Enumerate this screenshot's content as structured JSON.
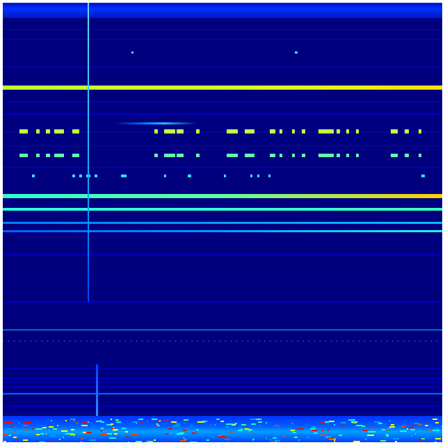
{
  "figure": {
    "type": "spectrogram",
    "colormap": "jet",
    "colors": {
      "background": "#00007f",
      "low": "#0000ff",
      "mid": "#00ffff",
      "high": "#ffff00",
      "peak": "#ff0000"
    }
  }
}
